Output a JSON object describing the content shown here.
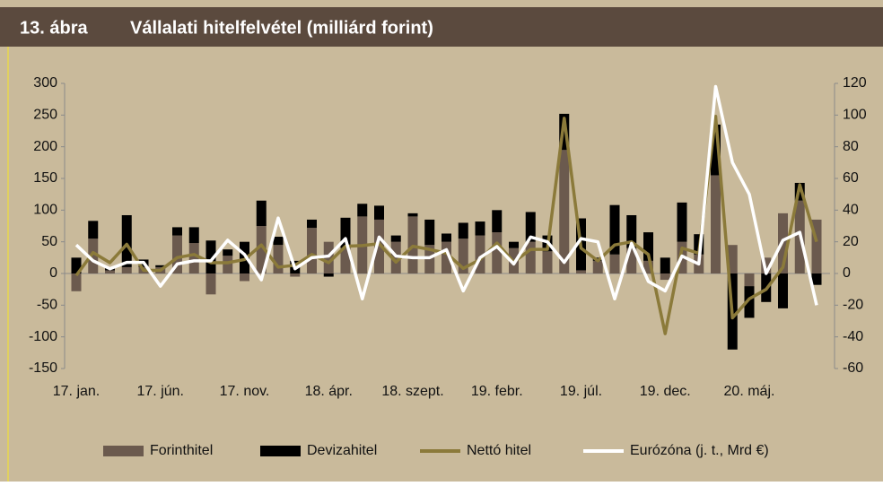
{
  "chart_data": {
    "type": "bar",
    "figure_label": "13. ábra",
    "title": "Vállalati hitelfelvétel (milliárd forint)",
    "categories": [
      "17. jan.",
      null,
      null,
      null,
      null,
      "17. jún.",
      null,
      null,
      null,
      null,
      "17. nov.",
      null,
      null,
      null,
      null,
      "18. ápr.",
      null,
      null,
      null,
      null,
      "18. szept.",
      null,
      null,
      null,
      null,
      "19. febr.",
      null,
      null,
      null,
      null,
      "19. júl.",
      null,
      null,
      null,
      null,
      "19. dec.",
      null,
      null,
      null,
      null,
      "20. máj.",
      null,
      null,
      null,
      null
    ],
    "series": [
      {
        "name": "Forinthitel",
        "type": "bar",
        "color": "#6b5a4e",
        "values": [
          -28,
          55,
          5,
          10,
          10,
          10,
          60,
          48,
          -33,
          28,
          -12,
          75,
          45,
          -5,
          72,
          50,
          40,
          90,
          85,
          50,
          90,
          45,
          50,
          55,
          60,
          65,
          40,
          50,
          35,
          195,
          5,
          20,
          30,
          40,
          20,
          -10,
          50,
          30,
          155,
          45,
          -20,
          25,
          95,
          115,
          85
        ]
      },
      {
        "name": "Devizahitel",
        "type": "bar",
        "color": "#000000",
        "values": [
          25,
          28,
          5,
          82,
          12,
          3,
          13,
          25,
          52,
          10,
          50,
          40,
          13,
          20,
          13,
          -5,
          48,
          20,
          22,
          10,
          5,
          40,
          13,
          25,
          22,
          35,
          10,
          47,
          25,
          57,
          82,
          5,
          78,
          52,
          45,
          25,
          62,
          32,
          80,
          -120,
          -50,
          -45,
          -55,
          28,
          -18
        ]
      },
      {
        "name": "Nettó hitel",
        "type": "line",
        "color": "#8b7a3a",
        "values": [
          -3,
          33,
          17,
          46,
          5,
          5,
          25,
          30,
          17,
          17,
          22,
          45,
          10,
          13,
          30,
          17,
          43,
          44,
          47,
          18,
          43,
          38,
          32,
          8,
          22,
          48,
          18,
          38,
          38,
          245,
          40,
          20,
          45,
          50,
          30,
          -95,
          40,
          32,
          248,
          -70,
          -40,
          -25,
          10,
          140,
          50
        ]
      },
      {
        "name": "Eurózóna (j. t., Mrd €)",
        "type": "line",
        "axis": "y2",
        "color": "#ffffff",
        "values": [
          18,
          8,
          3,
          7,
          7,
          -8,
          6,
          8,
          8,
          21,
          12,
          -4,
          35,
          3,
          10,
          11,
          22,
          -16,
          23,
          11,
          10,
          10,
          15,
          -11,
          10,
          17,
          6,
          23,
          20,
          7,
          22,
          20,
          -16,
          19,
          -5,
          -11,
          11,
          6,
          118,
          70,
          50,
          0,
          21,
          26,
          -20
        ]
      }
    ],
    "ylim": [
      -150,
      300
    ],
    "yticks": [
      -150,
      -100,
      -50,
      0,
      50,
      100,
      150,
      200,
      250,
      300
    ],
    "y2lim": [
      -60,
      120
    ],
    "y2ticks": [
      -60,
      -40,
      -20,
      0,
      20,
      40,
      60,
      80,
      100,
      120
    ],
    "legend": "bottom"
  }
}
